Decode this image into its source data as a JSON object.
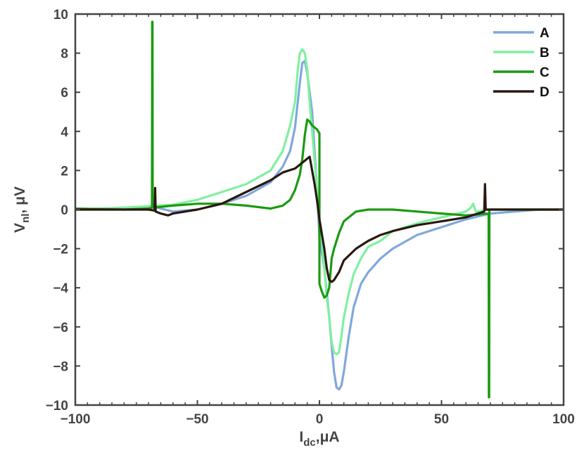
{
  "chart_data": {
    "type": "line",
    "title": "",
    "xlabel": {
      "main": "I",
      "sub": "dc",
      "rest": ",μA"
    },
    "ylabel": {
      "main": "V",
      "sub": "nl",
      "rest": ", μV"
    },
    "xlim": [
      -100,
      100
    ],
    "ylim": [
      -10,
      10
    ],
    "xticks": [
      -100,
      -50,
      0,
      50,
      100
    ],
    "xtick_labels": [
      "−100",
      "−50",
      "0",
      "50",
      "100"
    ],
    "yticks": [
      -10,
      -8,
      -6,
      -4,
      -2,
      0,
      2,
      4,
      6,
      8,
      10
    ],
    "ytick_labels": [
      "−10",
      "−8",
      "−6",
      "−4",
      "−2",
      "0",
      "2",
      "4",
      "6",
      "8",
      "10"
    ],
    "grid": false,
    "legend_position": "top-right",
    "series": [
      {
        "name": "A",
        "color": "#7fa8dc",
        "points": [
          [
            -100,
            0
          ],
          [
            -80,
            0.1
          ],
          [
            -68,
            0.15
          ],
          [
            -60,
            -0.1
          ],
          [
            -50,
            0
          ],
          [
            -40,
            0.3
          ],
          [
            -30,
            0.7
          ],
          [
            -20,
            1.4
          ],
          [
            -15,
            2.2
          ],
          [
            -12,
            3.0
          ],
          [
            -10,
            4.2
          ],
          [
            -8,
            6.5
          ],
          [
            -7,
            7.5
          ],
          [
            -6,
            7.6
          ],
          [
            -5,
            7.0
          ],
          [
            -3,
            5.0
          ],
          [
            -2,
            3.0
          ],
          [
            -1,
            1.0
          ],
          [
            0,
            -1.4
          ],
          [
            2,
            -3.0
          ],
          [
            4,
            -5.5
          ],
          [
            5,
            -7.0
          ],
          [
            6,
            -8.3
          ],
          [
            7,
            -9.1
          ],
          [
            8,
            -9.2
          ],
          [
            9,
            -9.0
          ],
          [
            10,
            -8.3
          ],
          [
            12,
            -6.5
          ],
          [
            14,
            -5.0
          ],
          [
            17,
            -3.8
          ],
          [
            20,
            -3.2
          ],
          [
            25,
            -2.5
          ],
          [
            30,
            -2.0
          ],
          [
            40,
            -1.3
          ],
          [
            50,
            -0.9
          ],
          [
            60,
            -0.5
          ],
          [
            70,
            -0.2
          ],
          [
            80,
            -0.1
          ],
          [
            90,
            0
          ],
          [
            100,
            0
          ]
        ]
      },
      {
        "name": "B",
        "color": "#80f0a0",
        "points": [
          [
            -100,
            0
          ],
          [
            -80,
            0.1
          ],
          [
            -60,
            0.25
          ],
          [
            -50,
            0.5
          ],
          [
            -40,
            0.9
          ],
          [
            -30,
            1.3
          ],
          [
            -20,
            2.0
          ],
          [
            -15,
            3.0
          ],
          [
            -12,
            4.3
          ],
          [
            -10,
            5.5
          ],
          [
            -9,
            7.0
          ],
          [
            -8,
            8.0
          ],
          [
            -7,
            8.2
          ],
          [
            -6,
            8.0
          ],
          [
            -5,
            7.2
          ],
          [
            -4,
            5.5
          ],
          [
            -3,
            4.0
          ],
          [
            -2,
            2.5
          ],
          [
            -1,
            1.0
          ],
          [
            0,
            -0.5
          ],
          [
            1,
            -1.5
          ],
          [
            2,
            -3.0
          ],
          [
            3,
            -4.5
          ],
          [
            4,
            -5.5
          ],
          [
            5,
            -6.8
          ],
          [
            6,
            -7.3
          ],
          [
            7,
            -7.4
          ],
          [
            8,
            -7.3
          ],
          [
            9,
            -6.5
          ],
          [
            10,
            -5.5
          ],
          [
            12,
            -4.3
          ],
          [
            14,
            -3.3
          ],
          [
            17,
            -2.5
          ],
          [
            20,
            -1.9
          ],
          [
            25,
            -1.6
          ],
          [
            30,
            -1.1
          ],
          [
            40,
            -0.7
          ],
          [
            50,
            -0.4
          ],
          [
            60,
            -0.1
          ],
          [
            62,
            0.1
          ],
          [
            63,
            0.3
          ],
          [
            64,
            -0.1
          ],
          [
            70,
            0
          ],
          [
            80,
            0
          ],
          [
            90,
            0
          ],
          [
            100,
            0
          ]
        ]
      },
      {
        "name": "C",
        "color": "#1a9a10",
        "points": [
          [
            -100,
            0.05
          ],
          [
            -80,
            0
          ],
          [
            -70,
            0.05
          ],
          [
            -68.6,
            0.1
          ],
          [
            -68.5,
            9.6
          ],
          [
            -68.4,
            9.6
          ],
          [
            -68.3,
            0.1
          ],
          [
            -60,
            0.2
          ],
          [
            -50,
            0.3
          ],
          [
            -40,
            0.3
          ],
          [
            -30,
            0.2
          ],
          [
            -20,
            0.05
          ],
          [
            -15,
            0.2
          ],
          [
            -12,
            0.5
          ],
          [
            -10,
            1.0
          ],
          [
            -8,
            1.8
          ],
          [
            -7,
            2.6
          ],
          [
            -6,
            3.8
          ],
          [
            -5,
            4.6
          ],
          [
            -4,
            4.5
          ],
          [
            -3,
            4.3
          ],
          [
            -1,
            4.1
          ],
          [
            0,
            3.9
          ],
          [
            0,
            -3.8
          ],
          [
            1,
            -4.2
          ],
          [
            2,
            -4.5
          ],
          [
            3,
            -4.4
          ],
          [
            4,
            -4.0
          ],
          [
            5,
            -2.5
          ],
          [
            6,
            -2.0
          ],
          [
            8,
            -1.2
          ],
          [
            10,
            -0.6
          ],
          [
            15,
            -0.1
          ],
          [
            20,
            0
          ],
          [
            30,
            0
          ],
          [
            40,
            -0.1
          ],
          [
            50,
            -0.2
          ],
          [
            60,
            -0.3
          ],
          [
            69.3,
            -0.2
          ],
          [
            69.4,
            -9.6
          ],
          [
            69.5,
            -9.6
          ],
          [
            69.6,
            0
          ],
          [
            80,
            0
          ],
          [
            90,
            0
          ],
          [
            100,
            0
          ]
        ]
      },
      {
        "name": "D",
        "color": "#2a1810",
        "points": [
          [
            -100,
            0
          ],
          [
            -90,
            0
          ],
          [
            -80,
            0
          ],
          [
            -70,
            0
          ],
          [
            -67.5,
            -0.05
          ],
          [
            -67.3,
            1.1
          ],
          [
            -67.1,
            -0.1
          ],
          [
            -65,
            -0.2
          ],
          [
            -62,
            -0.3
          ],
          [
            -60,
            -0.2
          ],
          [
            -50,
            0
          ],
          [
            -40,
            0.3
          ],
          [
            -30,
            0.9
          ],
          [
            -20,
            1.5
          ],
          [
            -15,
            1.9
          ],
          [
            -10,
            2.1
          ],
          [
            -8,
            2.3
          ],
          [
            -6,
            2.5
          ],
          [
            -5,
            2.6
          ],
          [
            -4,
            2.7
          ],
          [
            -3,
            2.0
          ],
          [
            -2,
            1.3
          ],
          [
            -1,
            0.5
          ],
          [
            0,
            -0.5
          ],
          [
            2,
            -2.0
          ],
          [
            3,
            -3.0
          ],
          [
            4,
            -3.6
          ],
          [
            5,
            -3.7
          ],
          [
            6,
            -3.6
          ],
          [
            8,
            -3.2
          ],
          [
            10,
            -2.6
          ],
          [
            15,
            -2.0
          ],
          [
            20,
            -1.6
          ],
          [
            25,
            -1.3
          ],
          [
            30,
            -1.1
          ],
          [
            40,
            -0.8
          ],
          [
            50,
            -0.6
          ],
          [
            60,
            -0.4
          ],
          [
            67.5,
            -0.1
          ],
          [
            67.8,
            1.3
          ],
          [
            68.1,
            0
          ],
          [
            70,
            0
          ],
          [
            80,
            0
          ],
          [
            90,
            0
          ],
          [
            100,
            0
          ]
        ]
      }
    ]
  }
}
